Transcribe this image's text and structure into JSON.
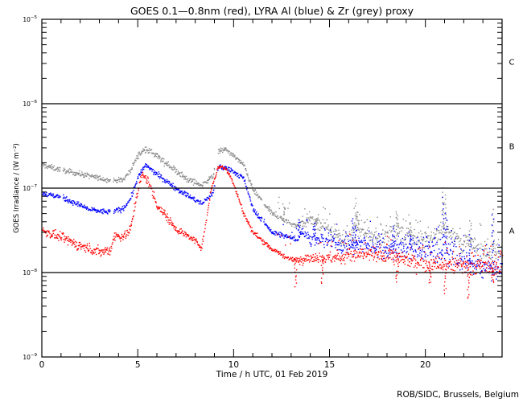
{
  "chart_data": {
    "type": "scatter",
    "title": "GOES 0.1—0.8nm (red), LYRA Al (blue) & Zr (grey) proxy",
    "xlabel": "Time / h UTC, 01 Feb 2019",
    "ylabel": "GOES Irradiance / (W m⁻²)",
    "xlim": [
      0,
      24
    ],
    "ylim_log10": [
      -9,
      -5
    ],
    "yscale": "log",
    "x_ticks": [
      "0",
      "5",
      "10",
      "15",
      "20"
    ],
    "x_tick_values": [
      0,
      5,
      10,
      15,
      20
    ],
    "y_ticks": [
      {
        "base": "10",
        "exp": "-5",
        "value": -5
      },
      {
        "base": "10",
        "exp": "-6",
        "value": -6
      },
      {
        "base": "10",
        "exp": "-7",
        "value": -7
      },
      {
        "base": "10",
        "exp": "-8",
        "value": -8
      },
      {
        "base": "10",
        "exp": "-9",
        "value": -9
      }
    ],
    "flare_classes": [
      {
        "label": "C",
        "log10_center": -5.5
      },
      {
        "label": "B",
        "log10_center": -6.5
      },
      {
        "label": "A",
        "log10_center": -7.5
      }
    ],
    "class_lines_log10": [
      -6,
      -7,
      -8
    ],
    "credit": "ROB/SIDC, Brussels, Belgium",
    "series": [
      {
        "name": "Zr (grey) proxy",
        "color": "#8c8c8c",
        "gaps": [
          [
            0.95,
            1.05
          ],
          [
            3.55,
            3.7
          ],
          [
            9.0,
            9.15
          ],
          [
            11.45,
            11.55
          ]
        ],
        "keypoints": [
          [
            0,
            -6.72
          ],
          [
            1.0,
            -6.78
          ],
          [
            3.5,
            -6.9
          ],
          [
            4.2,
            -6.9
          ],
          [
            4.6,
            -6.78
          ],
          [
            5.0,
            -6.6
          ],
          [
            5.4,
            -6.53
          ],
          [
            6.0,
            -6.62
          ],
          [
            7.5,
            -6.88
          ],
          [
            8.3,
            -6.96
          ],
          [
            8.9,
            -6.85
          ],
          [
            9.2,
            -6.55
          ],
          [
            9.6,
            -6.54
          ],
          [
            10.5,
            -6.72
          ],
          [
            11.0,
            -7.02
          ],
          [
            12.0,
            -7.3
          ],
          [
            13.2,
            -7.44
          ],
          [
            13.4,
            -7.42
          ],
          [
            14.0,
            -7.38
          ],
          [
            15.0,
            -7.5
          ],
          [
            16.0,
            -7.62
          ],
          [
            16.5,
            -7.45
          ],
          [
            17.0,
            -7.54
          ],
          [
            18.0,
            -7.58
          ],
          [
            18.5,
            -7.5
          ],
          [
            19.2,
            -7.57
          ],
          [
            20.0,
            -7.62
          ],
          [
            21.0,
            -7.48
          ],
          [
            22.0,
            -7.66
          ],
          [
            23.0,
            -7.72
          ],
          [
            24.0,
            -7.78
          ]
        ],
        "scatter_log10": [
          0.03,
          0.03,
          0.03,
          0.03,
          0.04,
          0.04,
          0.03,
          0.03,
          0.03,
          0.03,
          0.06,
          0.09,
          0.1,
          0.12,
          0.12,
          0.12,
          0.12,
          0.13
        ],
        "spikes": [
          [
            12.6,
            -7.2
          ],
          [
            14.3,
            -7.35
          ],
          [
            16.3,
            -7.13
          ],
          [
            16.45,
            -7.27
          ],
          [
            18.5,
            -7.28
          ],
          [
            19.2,
            -7.4
          ],
          [
            20.9,
            -7.0
          ],
          [
            21.0,
            -7.08
          ],
          [
            22.3,
            -7.38
          ],
          [
            23.5,
            -7.24
          ]
        ]
      },
      {
        "name": "LYRA Al (blue)",
        "color": "#0000ff",
        "gaps": [
          [
            0.95,
            1.05
          ],
          [
            3.55,
            3.7
          ],
          [
            9.0,
            9.15
          ],
          [
            11.45,
            11.55
          ]
        ],
        "keypoints": [
          [
            0,
            -7.06
          ],
          [
            1.0,
            -7.1
          ],
          [
            2.5,
            -7.25
          ],
          [
            3.5,
            -7.28
          ],
          [
            4.2,
            -7.24
          ],
          [
            4.6,
            -7.12
          ],
          [
            5.0,
            -6.86
          ],
          [
            5.4,
            -6.72
          ],
          [
            5.8,
            -6.8
          ],
          [
            7.0,
            -7.0
          ],
          [
            8.3,
            -7.18
          ],
          [
            8.9,
            -7.05
          ],
          [
            9.2,
            -6.74
          ],
          [
            9.8,
            -6.77
          ],
          [
            10.5,
            -6.88
          ],
          [
            11.0,
            -7.25
          ],
          [
            12.0,
            -7.52
          ],
          [
            13.3,
            -7.6
          ],
          [
            13.5,
            -7.5
          ],
          [
            14.0,
            -7.6
          ],
          [
            15.0,
            -7.62
          ],
          [
            16.0,
            -7.68
          ],
          [
            17.0,
            -7.66
          ],
          [
            18.0,
            -7.72
          ],
          [
            19.0,
            -7.7
          ],
          [
            20.0,
            -7.74
          ],
          [
            21.0,
            -7.72
          ],
          [
            22.0,
            -7.88
          ],
          [
            23.0,
            -7.92
          ],
          [
            24.0,
            -7.95
          ]
        ],
        "scatter_log10": [
          0.03,
          0.03,
          0.03,
          0.03,
          0.03,
          0.03,
          0.03,
          0.03,
          0.03,
          0.03,
          0.06,
          0.09,
          0.11,
          0.13,
          0.13,
          0.14,
          0.14,
          0.15
        ],
        "spikes": [
          [
            13.4,
            -7.38
          ],
          [
            14.2,
            -7.4
          ],
          [
            16.2,
            -7.36
          ],
          [
            16.35,
            -7.45
          ],
          [
            18.3,
            -7.45
          ],
          [
            19.2,
            -7.55
          ],
          [
            20.9,
            -7.12
          ],
          [
            21.05,
            -7.3
          ],
          [
            22.3,
            -7.55
          ],
          [
            23.5,
            -7.3
          ]
        ]
      },
      {
        "name": "GOES 0.1-0.8nm (red)",
        "color": "#ff0000",
        "gaps": [],
        "keypoints": [
          [
            0,
            -7.5
          ],
          [
            1.0,
            -7.58
          ],
          [
            2.0,
            -7.68
          ],
          [
            3.0,
            -7.75
          ],
          [
            3.6,
            -7.72
          ],
          [
            3.7,
            -7.56
          ],
          [
            4.3,
            -7.56
          ],
          [
            4.6,
            -7.48
          ],
          [
            4.9,
            -7.1
          ],
          [
            5.2,
            -6.84
          ],
          [
            5.5,
            -6.9
          ],
          [
            6.0,
            -7.2
          ],
          [
            7.0,
            -7.48
          ],
          [
            8.0,
            -7.62
          ],
          [
            8.3,
            -7.7
          ],
          [
            8.5,
            -7.45
          ],
          [
            8.8,
            -7.0
          ],
          [
            9.2,
            -6.73
          ],
          [
            9.6,
            -6.77
          ],
          [
            10.0,
            -6.95
          ],
          [
            10.5,
            -7.3
          ],
          [
            11.0,
            -7.52
          ],
          [
            12.0,
            -7.72
          ],
          [
            13.0,
            -7.85
          ],
          [
            14.0,
            -7.82
          ],
          [
            15.0,
            -7.82
          ],
          [
            16.0,
            -7.8
          ],
          [
            17.0,
            -7.78
          ],
          [
            18.0,
            -7.8
          ],
          [
            19.0,
            -7.84
          ],
          [
            20.0,
            -7.9
          ],
          [
            21.0,
            -7.9
          ],
          [
            22.0,
            -7.92
          ],
          [
            23.0,
            -7.92
          ],
          [
            24.0,
            -7.95
          ]
        ],
        "scatter_log10": [
          0.05,
          0.06,
          0.06,
          0.06,
          0.05,
          0.04,
          0.03,
          0.03,
          0.03,
          0.03,
          0.05,
          0.07,
          0.08,
          0.09,
          0.09,
          0.09,
          0.1,
          0.11
        ],
        "spikes": [
          [
            13.2,
            -8.15
          ],
          [
            14.6,
            -8.12
          ],
          [
            18.5,
            -8.1
          ],
          [
            20.2,
            -8.12
          ],
          [
            21.0,
            -8.24
          ],
          [
            22.2,
            -8.32
          ],
          [
            23.5,
            -8.1
          ]
        ]
      }
    ]
  }
}
